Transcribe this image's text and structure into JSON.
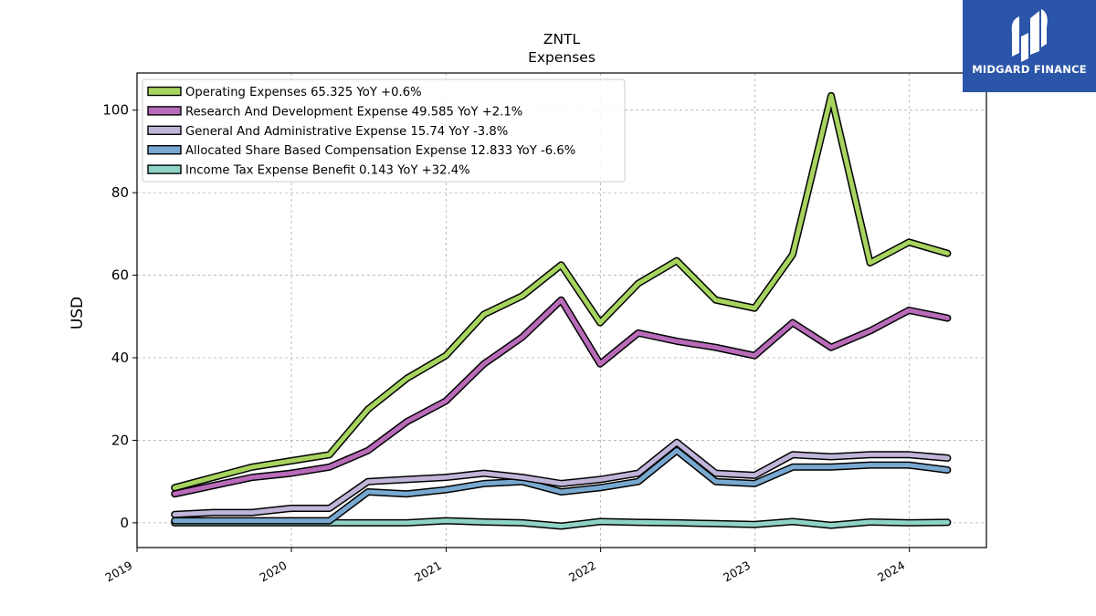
{
  "brand": {
    "name": "MIDGARD FINANCE",
    "bg_color": "#2b55a8"
  },
  "chart_data": {
    "type": "line",
    "title": "ZNTL",
    "subtitle": "Expenses",
    "ylabel": "USD",
    "xlabel": "",
    "ylim": [
      -6,
      109
    ],
    "yticks": [
      0,
      20,
      40,
      60,
      80,
      100
    ],
    "xticks": [
      "2019",
      "2020",
      "2021",
      "2022",
      "2023",
      "2024"
    ],
    "xlim": [
      "2019-01-01",
      "2024-07-01"
    ],
    "grid": true,
    "legend_position": "top-left",
    "x": [
      "2019-03-31",
      "2019-06-30",
      "2019-09-30",
      "2019-12-31",
      "2020-03-31",
      "2020-06-30",
      "2020-09-30",
      "2020-12-31",
      "2021-03-31",
      "2021-06-30",
      "2021-09-30",
      "2021-12-31",
      "2022-03-31",
      "2022-06-30",
      "2022-09-30",
      "2022-12-31",
      "2023-03-31",
      "2023-06-30",
      "2023-09-30",
      "2023-12-31",
      "2024-03-31"
    ],
    "series": [
      {
        "name": "Operating Expenses",
        "legend": "Operating Expenses  65.325 YoY +0.6%",
        "color": "#a6d45f",
        "values": [
          8.5,
          11.0,
          13.5,
          15.0,
          16.5,
          27.5,
          35.0,
          40.5,
          50.5,
          55.0,
          62.5,
          48.5,
          58.0,
          63.5,
          54.0,
          52.0,
          65.0,
          103.5,
          63.0,
          68.0,
          65.3
        ]
      },
      {
        "name": "Research And Development Expense",
        "legend": "Research And Development Expense  49.585 YoY +2.1%",
        "color": "#b86bb8",
        "values": [
          7.0,
          9.0,
          11.0,
          12.0,
          13.5,
          17.5,
          24.5,
          29.5,
          38.5,
          45.0,
          54.0,
          38.5,
          46.0,
          44.0,
          42.5,
          40.5,
          48.5,
          42.5,
          46.5,
          51.5,
          49.6
        ]
      },
      {
        "name": "General And Administrative Expense",
        "legend": "General And Administrative Expense  15.74 YoY -3.8%",
        "color": "#c0b4d8",
        "values": [
          2.0,
          2.5,
          2.5,
          3.5,
          3.5,
          10.0,
          10.5,
          11.0,
          12.0,
          11.0,
          9.5,
          10.5,
          12.0,
          19.5,
          12.0,
          11.5,
          16.5,
          16.0,
          16.5,
          16.5,
          15.7
        ]
      },
      {
        "name": "Allocated Share Based Compensation Expense",
        "legend": "Allocated Share Based Compensation Expense  12.833 YoY -6.6%",
        "color": "#79a9d0",
        "values": [
          0.5,
          0.5,
          0.5,
          0.5,
          0.5,
          7.5,
          7.0,
          8.0,
          9.5,
          10.0,
          7.5,
          8.5,
          10.0,
          17.5,
          10.0,
          9.5,
          13.5,
          13.5,
          14.0,
          14.0,
          12.8
        ]
      },
      {
        "name": "Income Tax Expense Benefit",
        "legend": "Income Tax Expense Benefit  0.143 YoY +32.4%",
        "color": "#8fd3c6",
        "values": [
          0.0,
          0.0,
          0.0,
          0.0,
          0.0,
          0.0,
          0.0,
          0.5,
          0.2,
          0.0,
          -0.8,
          0.3,
          0.1,
          0.0,
          -0.2,
          -0.4,
          0.3,
          -0.6,
          0.2,
          0.0,
          0.1
        ]
      }
    ]
  }
}
